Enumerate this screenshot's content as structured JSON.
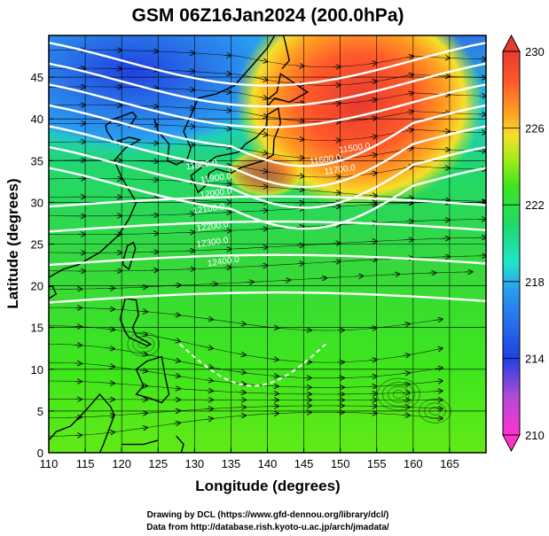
{
  "chart_data": {
    "type": "heatmap",
    "title": "GSM 06Z16Jan2024 (200.0hPa)",
    "xlabel": "Longitude (degrees)",
    "ylabel": "Latitude  (degrees)",
    "xlim": [
      110,
      170
    ],
    "ylim": [
      0,
      50
    ],
    "xticks": [
      "110",
      "115",
      "120",
      "125",
      "130",
      "135",
      "140",
      "145",
      "150",
      "155",
      "160",
      "165"
    ],
    "yticks": [
      "0",
      "5",
      "10",
      "15",
      "20",
      "25",
      "30",
      "35",
      "40",
      "45"
    ],
    "colorbar": {
      "min": 210,
      "max": 230,
      "ticks": [
        "210",
        "214",
        "218",
        "222",
        "226",
        "230"
      ],
      "colors": [
        "#ff33cc",
        "#b04bd6",
        "#2040e0",
        "#2a9df0",
        "#1ee6c8",
        "#22d86a",
        "#3ee61c",
        "#a8ea1c",
        "#f5e02a",
        "#ff9f22",
        "#ff5a2a",
        "#e83a30"
      ]
    },
    "contour_labels": [
      "11500.0",
      "11600.0",
      "11700.0",
      "11800.0",
      "11900.0",
      "12000.0",
      "12100.0",
      "12200.0",
      "12300.0",
      "12400.0"
    ],
    "grid": true,
    "overlays": [
      "wind streamlines",
      "geopotential height contours",
      "coastlines"
    ]
  },
  "credits": {
    "line1": "Drawing by DCL (https://www.gfd-dennou.org/library/dcl/)",
    "line2": "Data from http://database.rish.kyoto-u.ac.jp/arch/jmadata/"
  }
}
